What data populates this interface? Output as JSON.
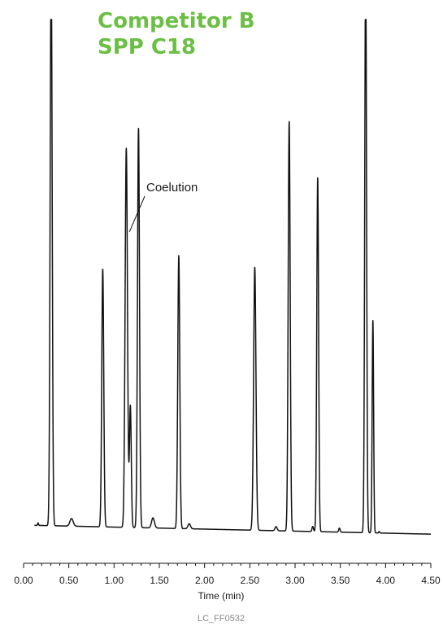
{
  "chart_data": {
    "type": "line",
    "title_lines": [
      "Competitor B",
      "SPP C18"
    ],
    "title_color": "#6cbf45",
    "xlabel": "Time (min)",
    "ylabel": "",
    "xlim": [
      0,
      4.5
    ],
    "x_ticks": [
      "0.00",
      "0.50",
      "1.00",
      "1.50",
      "2.00",
      "2.50",
      "3.00",
      "3.50",
      "4.00",
      "4.50"
    ],
    "grid": false,
    "baseline": {
      "start": 0.0,
      "end": -0.018
    },
    "peaks": [
      {
        "x": 0.16,
        "y": 0.005,
        "w": 0.005
      },
      {
        "x": 0.305,
        "y": 1.12,
        "w": 0.011
      },
      {
        "x": 0.53,
        "y": 0.015,
        "w": 0.018
      },
      {
        "x": 0.875,
        "y": 0.51,
        "w": 0.011
      },
      {
        "x": 1.135,
        "y": 0.75,
        "w": 0.013
      },
      {
        "x": 1.18,
        "y": 0.24,
        "w": 0.01
      },
      {
        "x": 1.27,
        "y": 0.79,
        "w": 0.011
      },
      {
        "x": 1.43,
        "y": 0.02,
        "w": 0.016
      },
      {
        "x": 1.715,
        "y": 0.54,
        "w": 0.011
      },
      {
        "x": 1.83,
        "y": 0.01,
        "w": 0.014
      },
      {
        "x": 2.555,
        "y": 0.52,
        "w": 0.013
      },
      {
        "x": 2.79,
        "y": 0.008,
        "w": 0.012
      },
      {
        "x": 2.935,
        "y": 0.81,
        "w": 0.011
      },
      {
        "x": 3.195,
        "y": 0.01,
        "w": 0.008
      },
      {
        "x": 3.25,
        "y": 0.7,
        "w": 0.01
      },
      {
        "x": 3.49,
        "y": 0.008,
        "w": 0.008
      },
      {
        "x": 3.78,
        "y": 1.13,
        "w": 0.01
      },
      {
        "x": 3.86,
        "y": 0.42,
        "w": 0.008
      },
      {
        "x": 3.93,
        "y": 0.003,
        "w": 0.006
      }
    ],
    "annotations": [
      {
        "text": "Coelution",
        "point_x": 1.17,
        "point_y": 0.58
      }
    ]
  },
  "footer": "LC_FF0532"
}
